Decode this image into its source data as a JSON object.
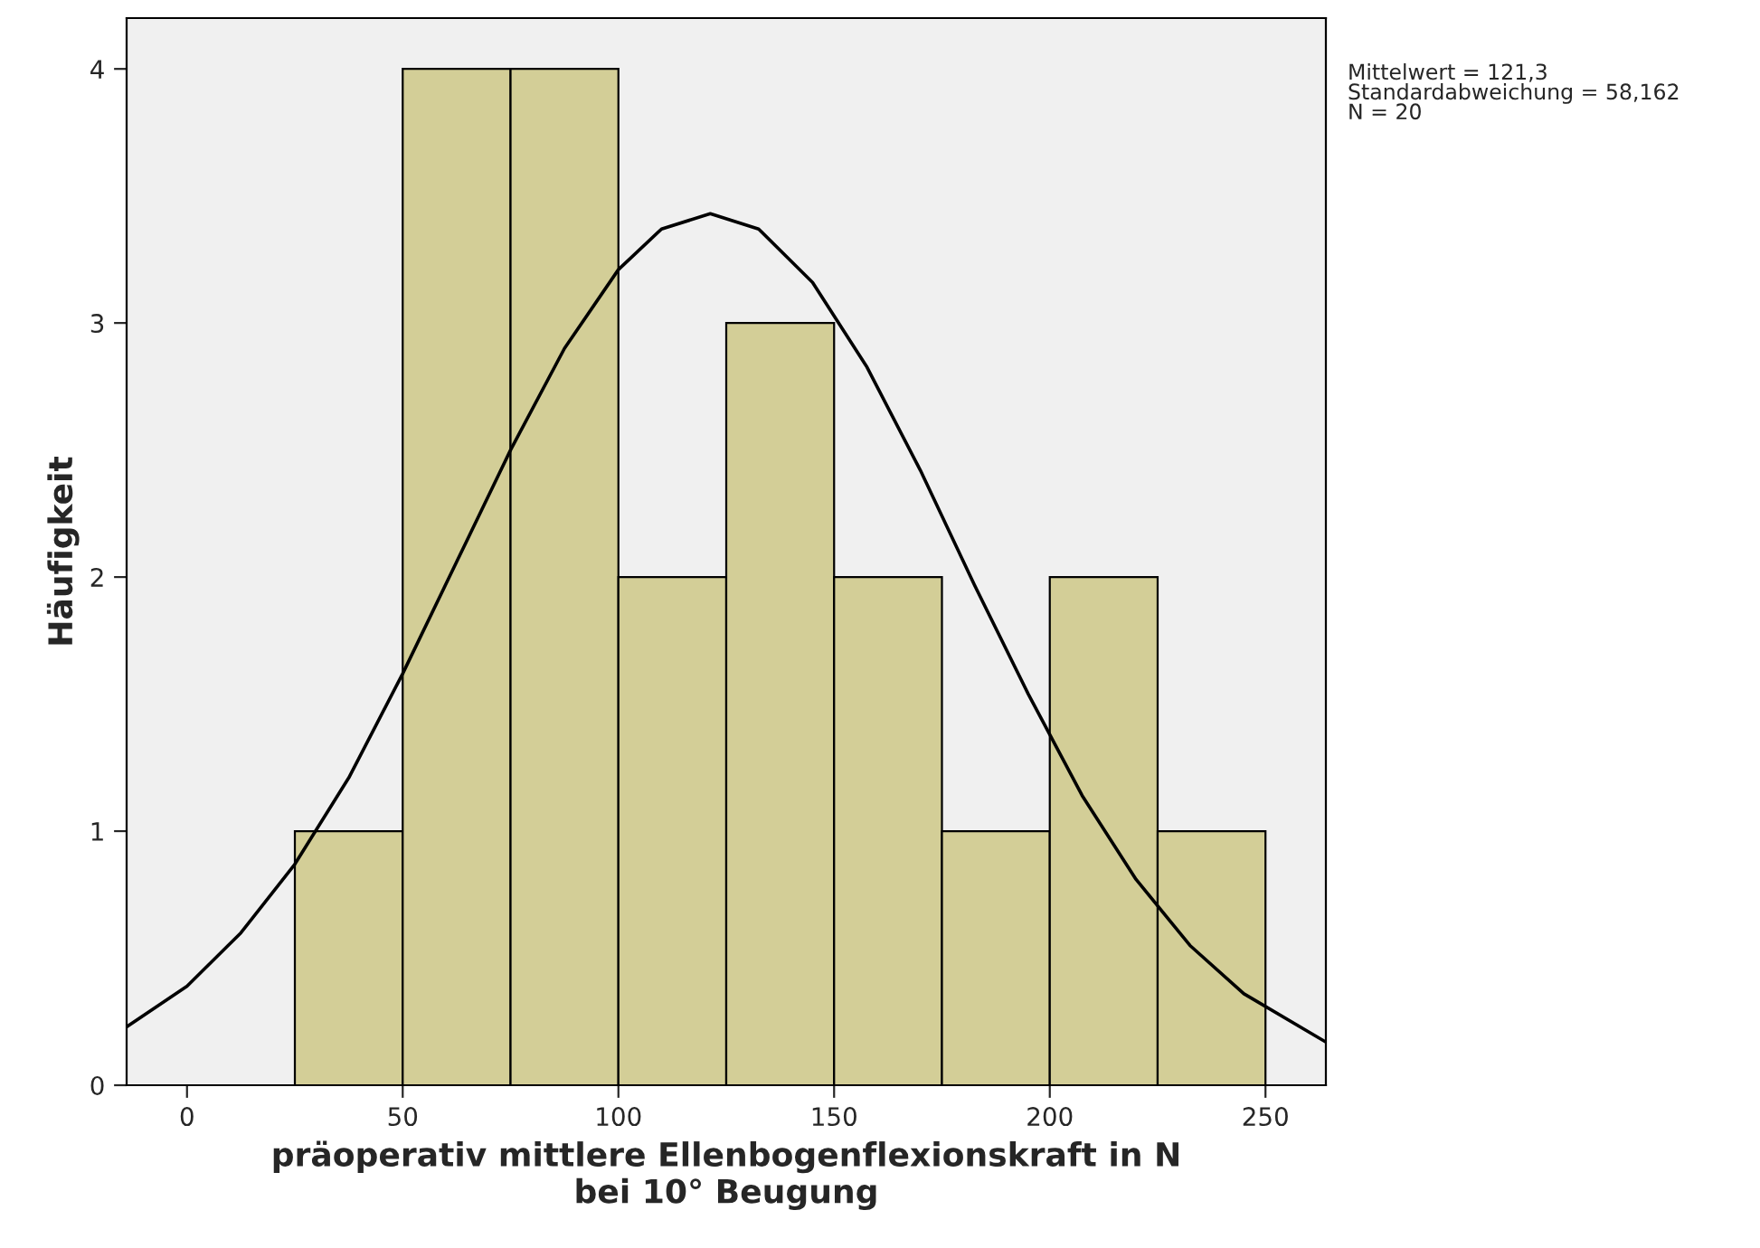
{
  "chart_data": {
    "type": "histogram",
    "xlabel": "präoperativ mittlere Ellenbogenflexionskraft in N\nbei 10° Beugung",
    "ylabel": "Häufigkeit",
    "series": [
      {
        "bins": [
          25,
          50,
          75,
          100,
          125,
          150,
          175,
          200,
          225,
          250
        ],
        "values": [
          1,
          4,
          4,
          2,
          3,
          2,
          1,
          2,
          1
        ],
        "color": "#d3ce97"
      },
      {
        "type": "line",
        "color": "#000000",
        "x": [
          -14,
          0,
          12.5,
          25,
          37.5,
          50,
          62.5,
          75,
          87.5,
          100,
          110,
          121.3,
          132.5,
          145,
          157.5,
          170,
          182.5,
          195,
          207.5,
          220,
          232.5,
          245,
          264
        ],
        "values": [
          0.23,
          0.39,
          0.6,
          0.87,
          1.21,
          1.62,
          2.06,
          2.5,
          2.9,
          3.21,
          3.37,
          3.43,
          3.37,
          3.16,
          2.83,
          2.42,
          1.97,
          1.54,
          1.14,
          0.81,
          0.55,
          0.36,
          0.17
        ]
      }
    ],
    "xlim": [
      -14,
      264
    ],
    "xticks": [
      0,
      50,
      100,
      150,
      200,
      250
    ],
    "ylim": [
      0,
      4.2
    ],
    "yticks": [
      0,
      1,
      2,
      3,
      4
    ],
    "grid": false,
    "legend": false,
    "annotations": [
      "Mittelwert = 121,3\nStandardabweichung = 58,162\nN = 20"
    ]
  }
}
